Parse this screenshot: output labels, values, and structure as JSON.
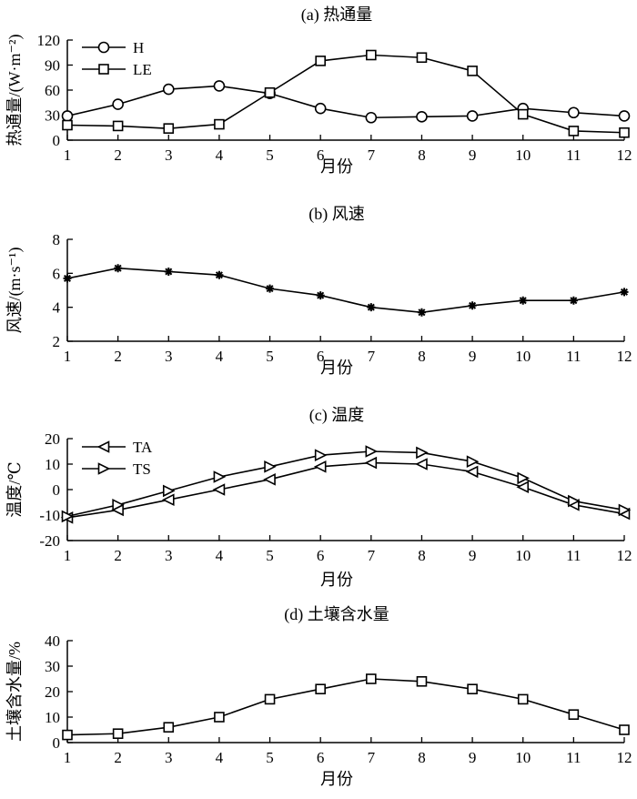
{
  "chart_data": [
    {
      "type": "line",
      "title": "(a) 热通量",
      "xlabel": "月份",
      "ylabel": "热通量/(W·m⁻²)",
      "categories": [
        "1",
        "2",
        "3",
        "4",
        "5",
        "6",
        "7",
        "8",
        "9",
        "10",
        "11",
        "12"
      ],
      "ylim": [
        0,
        120
      ],
      "yticks": [
        "0",
        "30",
        "60",
        "90",
        "120"
      ],
      "legend_position": "top-left",
      "series": [
        {
          "name": "H",
          "marker": "circle",
          "values": [
            29,
            43,
            61,
            65,
            56,
            38,
            27,
            28,
            29,
            38,
            33,
            29
          ]
        },
        {
          "name": "LE",
          "marker": "square",
          "values": [
            18,
            17,
            14,
            19,
            57,
            95,
            102,
            99,
            83,
            31,
            11,
            9
          ]
        }
      ]
    },
    {
      "type": "line",
      "title": "(b) 风速",
      "xlabel": "月份",
      "ylabel": "风速/(m·s⁻¹)",
      "categories": [
        "1",
        "2",
        "3",
        "4",
        "5",
        "6",
        "7",
        "8",
        "9",
        "10",
        "11",
        "12"
      ],
      "ylim": [
        2,
        8
      ],
      "yticks": [
        "2",
        "4",
        "6",
        "8"
      ],
      "series": [
        {
          "marker": "star",
          "values": [
            5.7,
            6.3,
            6.1,
            5.9,
            5.1,
            4.7,
            4.0,
            3.7,
            4.1,
            4.4,
            4.4,
            4.9
          ]
        }
      ]
    },
    {
      "type": "line",
      "title": "(c) 温度",
      "xlabel": "月份",
      "ylabel": "温度/℃",
      "categories": [
        "1",
        "2",
        "3",
        "4",
        "5",
        "6",
        "7",
        "8",
        "9",
        "10",
        "11",
        "12"
      ],
      "ylim": [
        -20,
        20
      ],
      "yticks": [
        "-20",
        "-10",
        "0",
        "10",
        "20"
      ],
      "legend_position": "top-left",
      "series": [
        {
          "name": "TA",
          "marker": "triangle-left",
          "values": [
            -11,
            -8,
            -4,
            0,
            4,
            9,
            10.5,
            10,
            7,
            1,
            -6,
            -9.5
          ]
        },
        {
          "name": "TS",
          "marker": "triangle-right",
          "values": [
            -10.5,
            -6,
            -0.5,
            5,
            9,
            13.5,
            15,
            14.5,
            11,
            4.5,
            -4.5,
            -8
          ]
        }
      ]
    },
    {
      "type": "line",
      "title": "(d) 土壤含水量",
      "xlabel": "月份",
      "ylabel": "土壤含水量/%",
      "categories": [
        "1",
        "2",
        "3",
        "4",
        "5",
        "6",
        "7",
        "8",
        "9",
        "10",
        "11",
        "12"
      ],
      "ylim": [
        0,
        40
      ],
      "yticks": [
        "0",
        "10",
        "20",
        "30",
        "40"
      ],
      "series": [
        {
          "marker": "square",
          "values": [
            3,
            3.5,
            6,
            10,
            17,
            21,
            25,
            24,
            21,
            17,
            11,
            5
          ]
        }
      ]
    }
  ]
}
